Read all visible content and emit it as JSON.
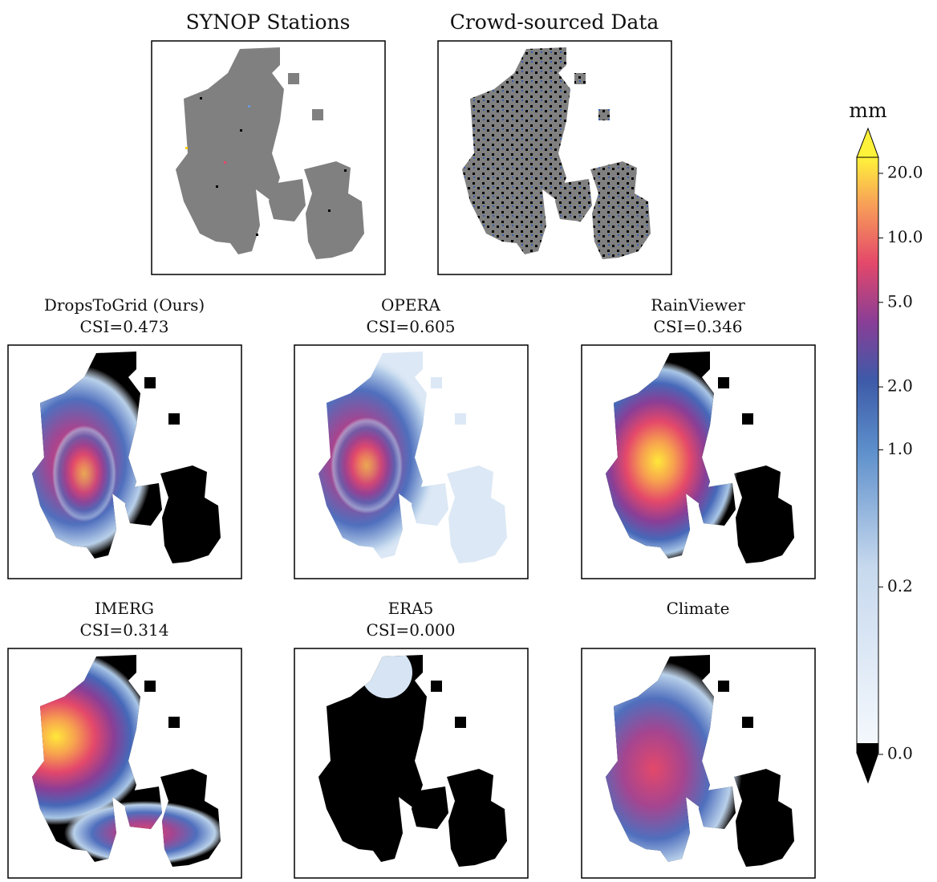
{
  "top_panels": [
    {
      "title": "SYNOP Stations"
    },
    {
      "title": "Crowd-sourced Data"
    }
  ],
  "panels": [
    {
      "title": "DropsToGrid (Ours)",
      "csi": "CSI=0.473"
    },
    {
      "title": "OPERA",
      "csi": "CSI=0.605"
    },
    {
      "title": "RainViewer",
      "csi": "CSI=0.346"
    },
    {
      "title": "IMERG",
      "csi": "CSI=0.314"
    },
    {
      "title": "ERA5",
      "csi": "CSI=0.000"
    },
    {
      "title": "Climate"
    }
  ],
  "colorbar": {
    "label": "mm",
    "ticks": [
      {
        "value": 0,
        "label": "0.0"
      },
      {
        "value": 0.2,
        "label": "0.2"
      },
      {
        "value": 1,
        "label": "1.0"
      },
      {
        "value": 2,
        "label": "2.0"
      },
      {
        "value": 5,
        "label": "5.0"
      },
      {
        "value": 10,
        "label": "10.0"
      },
      {
        "value": 20,
        "label": "20.0"
      }
    ]
  }
}
